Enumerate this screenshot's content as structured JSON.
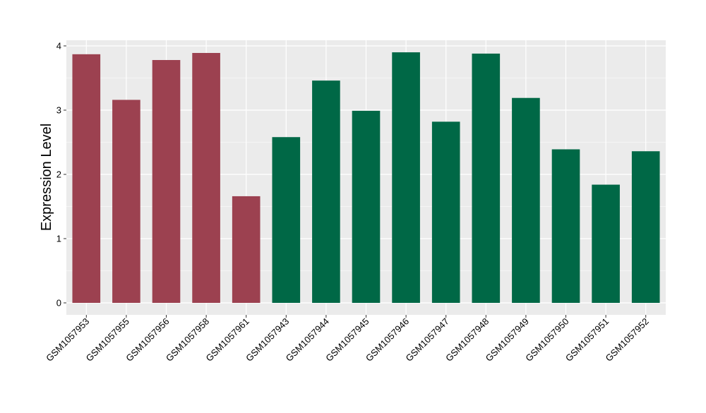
{
  "chart_data": {
    "type": "bar",
    "ylabel": "Expression Level",
    "xlabel": "",
    "ylim": [
      0,
      4.2
    ],
    "yticks": [
      0,
      1,
      2,
      3,
      4
    ],
    "grid": true,
    "categories": [
      "GSM1057953",
      "GSM1057955",
      "GSM1057956",
      "GSM1057958",
      "GSM1057961",
      "GSM1057943",
      "GSM1057944",
      "GSM1057945",
      "GSM1057946",
      "GSM1057947",
      "GSM1057948",
      "GSM1057949",
      "GSM1057950",
      "GSM1057951",
      "GSM1057952"
    ],
    "values": [
      3.87,
      3.16,
      3.78,
      3.89,
      1.66,
      2.58,
      3.46,
      2.99,
      3.9,
      2.82,
      3.88,
      3.19,
      2.39,
      1.84,
      2.36
    ],
    "group_colors": [
      "#9c4150",
      "#9c4150",
      "#9c4150",
      "#9c4150",
      "#9c4150",
      "#006846",
      "#006846",
      "#006846",
      "#006846",
      "#006846",
      "#006846",
      "#006846",
      "#006846",
      "#006846",
      "#006846"
    ],
    "panel_color": "#ebebeb",
    "grid_color": "#ffffff"
  }
}
